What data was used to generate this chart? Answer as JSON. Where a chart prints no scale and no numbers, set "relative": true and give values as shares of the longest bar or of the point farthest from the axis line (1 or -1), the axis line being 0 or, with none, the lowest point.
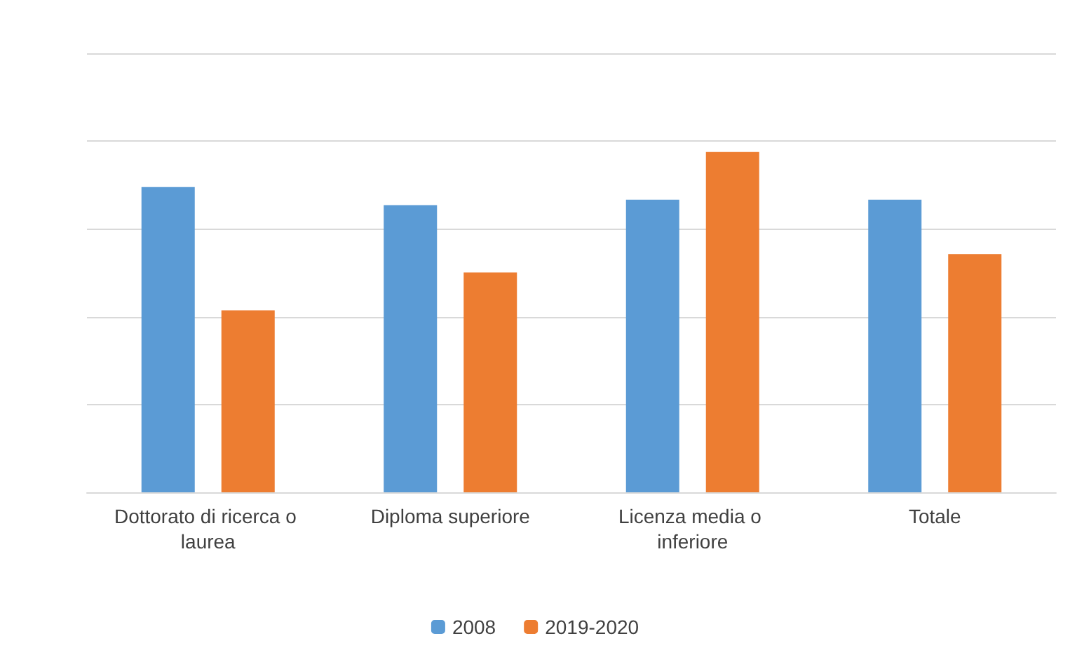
{
  "chart_data": {
    "type": "bar",
    "relative": true,
    "categories": [
      "Dottorato di ricerca o laurea",
      "Diploma superiore",
      "Licenza media o inferiore",
      "Totale"
    ],
    "series": [
      {
        "name": "2008",
        "color": "#5b9bd5",
        "values": [
          0.897,
          0.844,
          0.86,
          0.86
        ]
      },
      {
        "name": "2019-2020",
        "color": "#ed7d31",
        "values": [
          0.535,
          0.646,
          1,
          0.7
        ]
      }
    ],
    "grid": "y",
    "legend": "bottom"
  }
}
